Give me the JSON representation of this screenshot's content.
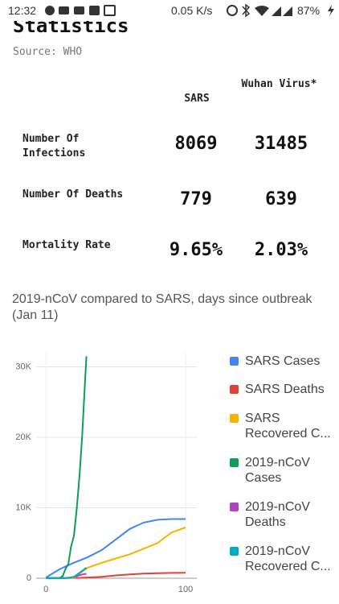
{
  "status_bar": {
    "time": "12:32",
    "speed": "0.05 K/s",
    "battery": "87%"
  },
  "header": {
    "title": "Statistics",
    "source": "Source: WHO"
  },
  "table": {
    "columns": [
      "SARS",
      "Wuhan Virus*"
    ],
    "rows": [
      [
        "Number Of Infections",
        "8069",
        "31485"
      ],
      [
        "Number Of Deaths",
        "779",
        "639"
      ],
      [
        "Mortality Rate",
        "9.65%",
        "2.03%"
      ]
    ]
  },
  "chart_data": {
    "type": "line",
    "title": "2019-nCoV compared to SARS, days since outbreak (Jan 11)",
    "xlim": [
      -7,
      108
    ],
    "xticks": [
      0,
      100
    ],
    "ylim": [
      0,
      32000
    ],
    "yticks": [
      0,
      {
        "value": 10000,
        "label": "10K"
      },
      {
        "value": 20000,
        "label": "20K"
      },
      {
        "value": 30000,
        "label": "30K"
      }
    ],
    "grid": true,
    "legend": "right",
    "series": [
      {
        "name": "SARS Cases",
        "color": "#4285f4",
        "x": [
          0,
          10,
          20,
          30,
          40,
          50,
          60,
          70,
          80,
          90,
          100
        ],
        "values": [
          100,
          1300,
          2200,
          3000,
          4000,
          5500,
          7000,
          7900,
          8300,
          8400,
          8400
        ]
      },
      {
        "name": "SARS Deaths",
        "color": "#db4437",
        "x": [
          0,
          20,
          30,
          40,
          50,
          60,
          70,
          80,
          90,
          100
        ],
        "values": [
          0,
          20,
          100,
          200,
          400,
          550,
          650,
          720,
          760,
          770
        ]
      },
      {
        "name": "SARS Recovered C...",
        "color": "#f4b400",
        "x": [
          0,
          20,
          25,
          30,
          40,
          50,
          60,
          70,
          80,
          90,
          100
        ],
        "values": [
          0,
          0,
          800,
          1500,
          2200,
          2800,
          3400,
          4200,
          5000,
          6500,
          7200
        ]
      },
      {
        "name": "2019-nCoV Cases",
        "color": "#0f9d58",
        "x": [
          0,
          10,
          12,
          14,
          16,
          18,
          20,
          22,
          24,
          26,
          28,
          29
        ],
        "values": [
          40,
          45,
          300,
          1300,
          2000,
          4500,
          6000,
          9700,
          14400,
          20400,
          28000,
          31500
        ]
      },
      {
        "name": "2019-nCoV Deaths",
        "color": "#ab47bc",
        "x": [
          0,
          15,
          20,
          25,
          29
        ],
        "values": [
          1,
          40,
          170,
          490,
          640
        ]
      },
      {
        "name": "2019-nCoV Recovered C...",
        "color": "#00acc1",
        "x": [
          0,
          15,
          20,
          25,
          29
        ],
        "values": [
          0,
          30,
          200,
          900,
          1500
        ]
      }
    ]
  }
}
